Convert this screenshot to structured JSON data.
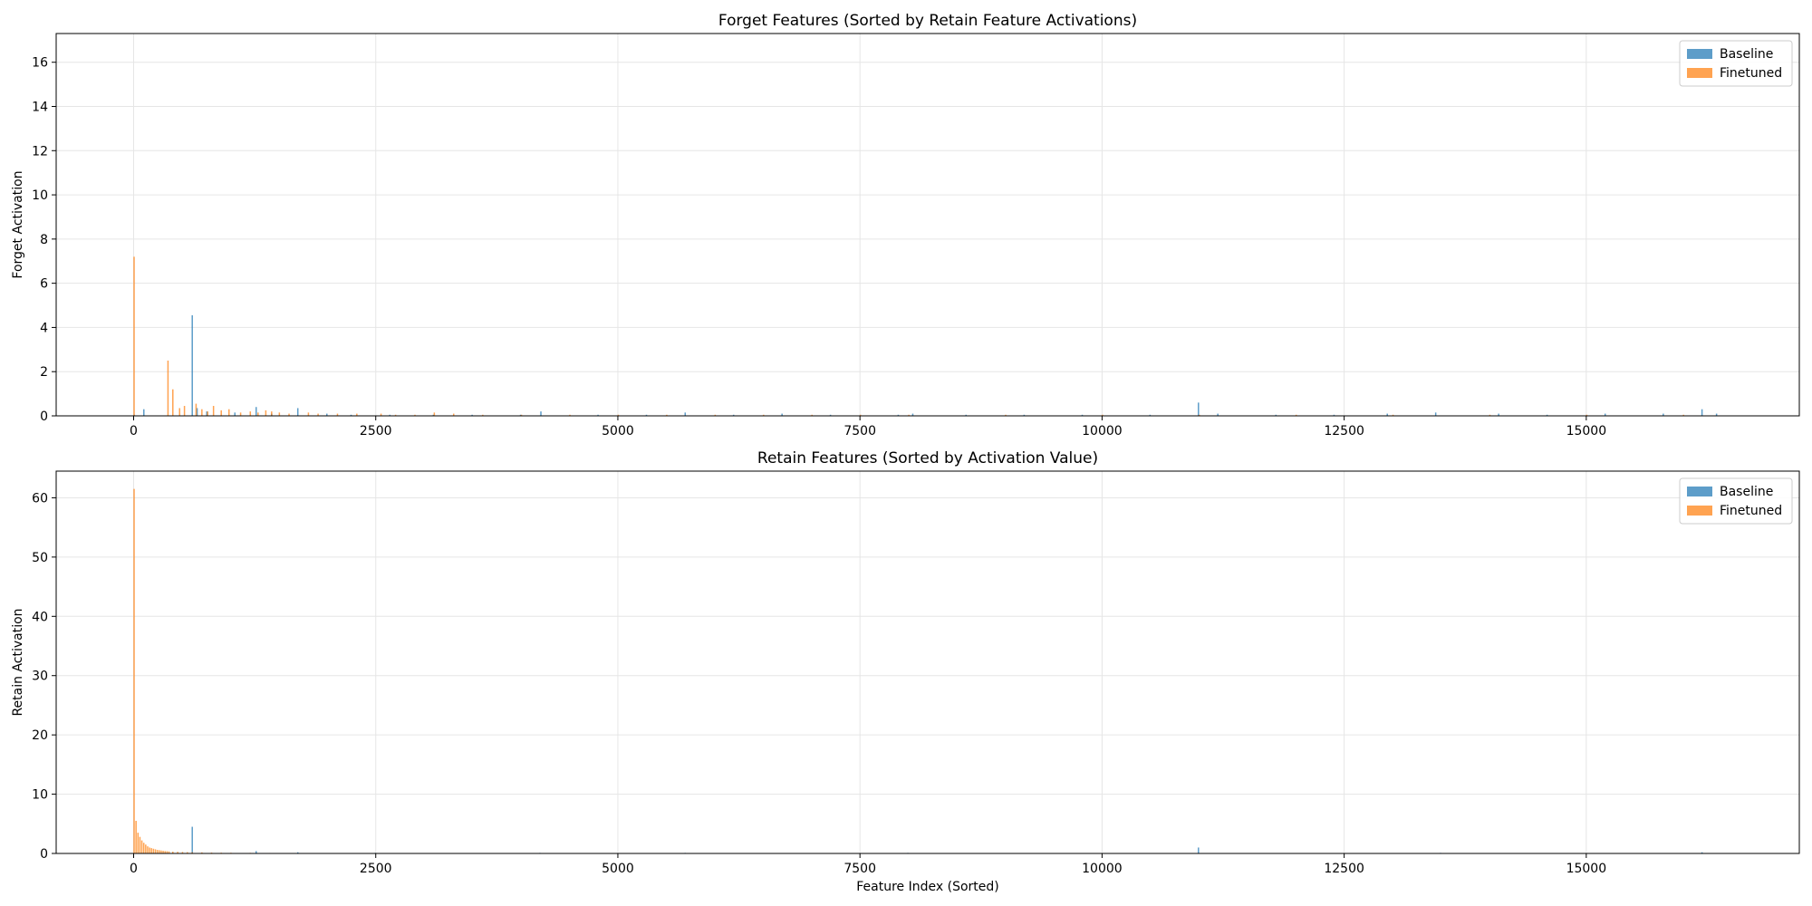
{
  "chart_data": [
    {
      "type": "bar",
      "title": "Forget Features (Sorted by Retain Feature Activations)",
      "xlabel": "",
      "ylabel": "Forget Activation",
      "xlim": [
        -800,
        17200
      ],
      "ylim": [
        0,
        17.3
      ],
      "xticks": [
        0,
        2500,
        5000,
        7500,
        10000,
        12500,
        15000
      ],
      "yticks": [
        0,
        2,
        4,
        6,
        8,
        10,
        12,
        14,
        16
      ],
      "grid": true,
      "legend_position": "top-right",
      "series": [
        {
          "name": "Baseline",
          "color": "#1f77b4",
          "points": [
            [
              10,
              0.05
            ],
            [
              110,
              0.3
            ],
            [
              610,
              4.55
            ],
            [
              660,
              0.35
            ],
            [
              760,
              0.2
            ],
            [
              1050,
              0.15
            ],
            [
              1270,
              0.4
            ],
            [
              1430,
              0.1
            ],
            [
              1700,
              0.35
            ],
            [
              2000,
              0.1
            ],
            [
              2250,
              0.05
            ],
            [
              2650,
              0.05
            ],
            [
              3100,
              0.05
            ],
            [
              3500,
              0.05
            ],
            [
              4000,
              0.05
            ],
            [
              4210,
              0.2
            ],
            [
              4800,
              0.05
            ],
            [
              5300,
              0.05
            ],
            [
              5700,
              0.15
            ],
            [
              6200,
              0.05
            ],
            [
              6700,
              0.1
            ],
            [
              7200,
              0.05
            ],
            [
              7900,
              0.05
            ],
            [
              8050,
              0.1
            ],
            [
              8600,
              0.05
            ],
            [
              9200,
              0.05
            ],
            [
              9800,
              0.05
            ],
            [
              10500,
              0.05
            ],
            [
              11000,
              0.6
            ],
            [
              11200,
              0.1
            ],
            [
              11800,
              0.05
            ],
            [
              12400,
              0.05
            ],
            [
              12950,
              0.1
            ],
            [
              13450,
              0.15
            ],
            [
              14100,
              0.1
            ],
            [
              14600,
              0.05
            ],
            [
              15200,
              0.1
            ],
            [
              15800,
              0.1
            ],
            [
              16200,
              0.3
            ],
            [
              16350,
              0.1
            ]
          ]
        },
        {
          "name": "Finetuned",
          "color": "#ff7f0e",
          "points": [
            [
              0,
              7.2
            ],
            [
              350,
              2.5
            ],
            [
              400,
              1.2
            ],
            [
              470,
              0.35
            ],
            [
              520,
              0.45
            ],
            [
              640,
              0.55
            ],
            [
              700,
              0.3
            ],
            [
              760,
              0.2
            ],
            [
              820,
              0.45
            ],
            [
              900,
              0.25
            ],
            [
              980,
              0.3
            ],
            [
              1100,
              0.15
            ],
            [
              1200,
              0.2
            ],
            [
              1280,
              0.15
            ],
            [
              1360,
              0.25
            ],
            [
              1420,
              0.2
            ],
            [
              1500,
              0.15
            ],
            [
              1600,
              0.1
            ],
            [
              1800,
              0.15
            ],
            [
              1900,
              0.1
            ],
            [
              2100,
              0.1
            ],
            [
              2300,
              0.1
            ],
            [
              2550,
              0.1
            ],
            [
              2700,
              0.05
            ],
            [
              2900,
              0.05
            ],
            [
              3100,
              0.15
            ],
            [
              3300,
              0.1
            ],
            [
              3600,
              0.05
            ],
            [
              4000,
              0.05
            ],
            [
              4500,
              0.05
            ],
            [
              5000,
              0.05
            ],
            [
              5500,
              0.05
            ],
            [
              6000,
              0.05
            ],
            [
              6500,
              0.05
            ],
            [
              7000,
              0.05
            ],
            [
              7500,
              0.05
            ],
            [
              8000,
              0.05
            ],
            [
              9000,
              0.05
            ],
            [
              10000,
              0.05
            ],
            [
              11000,
              0.05
            ],
            [
              12000,
              0.05
            ],
            [
              13000,
              0.05
            ],
            [
              14000,
              0.05
            ],
            [
              15000,
              0.05
            ],
            [
              16000,
              0.05
            ]
          ]
        }
      ]
    },
    {
      "type": "bar",
      "title": "Retain Features (Sorted by Activation Value)",
      "xlabel": "Feature Index (Sorted)",
      "ylabel": "Retain Activation",
      "xlim": [
        -800,
        17200
      ],
      "ylim": [
        0,
        64.5
      ],
      "xticks": [
        0,
        2500,
        5000,
        7500,
        10000,
        12500,
        15000
      ],
      "yticks": [
        0,
        10,
        20,
        30,
        40,
        50,
        60
      ],
      "grid": true,
      "legend_position": "top-right",
      "series": [
        {
          "name": "Baseline",
          "color": "#1f77b4",
          "points": [
            [
              610,
              4.5
            ],
            [
              1270,
              0.4
            ],
            [
              1700,
              0.2
            ],
            [
              2500,
              0.1
            ],
            [
              4200,
              0.1
            ],
            [
              5700,
              0.1
            ],
            [
              8000,
              0.1
            ],
            [
              11000,
              1.0
            ],
            [
              13500,
              0.1
            ],
            [
              16200,
              0.2
            ]
          ]
        },
        {
          "name": "Finetuned",
          "color": "#ff7f0e",
          "points": [
            [
              0,
              61.5
            ],
            [
              20,
              5.5
            ],
            [
              40,
              3.5
            ],
            [
              60,
              2.8
            ],
            [
              80,
              2.2
            ],
            [
              100,
              1.8
            ],
            [
              120,
              1.5
            ],
            [
              140,
              1.2
            ],
            [
              160,
              1.0
            ],
            [
              180,
              0.9
            ],
            [
              200,
              0.8
            ],
            [
              220,
              0.7
            ],
            [
              240,
              0.6
            ],
            [
              260,
              0.55
            ],
            [
              280,
              0.5
            ],
            [
              300,
              0.45
            ],
            [
              320,
              0.4
            ],
            [
              340,
              0.38
            ],
            [
              360,
              0.35
            ],
            [
              400,
              0.3
            ],
            [
              450,
              0.28
            ],
            [
              500,
              0.25
            ],
            [
              550,
              0.22
            ],
            [
              600,
              0.2
            ],
            [
              700,
              0.18
            ],
            [
              800,
              0.15
            ],
            [
              900,
              0.13
            ],
            [
              1000,
              0.12
            ],
            [
              1200,
              0.1
            ],
            [
              1400,
              0.08
            ],
            [
              1600,
              0.07
            ],
            [
              1800,
              0.06
            ],
            [
              2000,
              0.05
            ],
            [
              2500,
              0.04
            ],
            [
              3000,
              0.03
            ],
            [
              4000,
              0.02
            ],
            [
              5000,
              0.02
            ],
            [
              6000,
              0.02
            ]
          ]
        }
      ]
    }
  ]
}
